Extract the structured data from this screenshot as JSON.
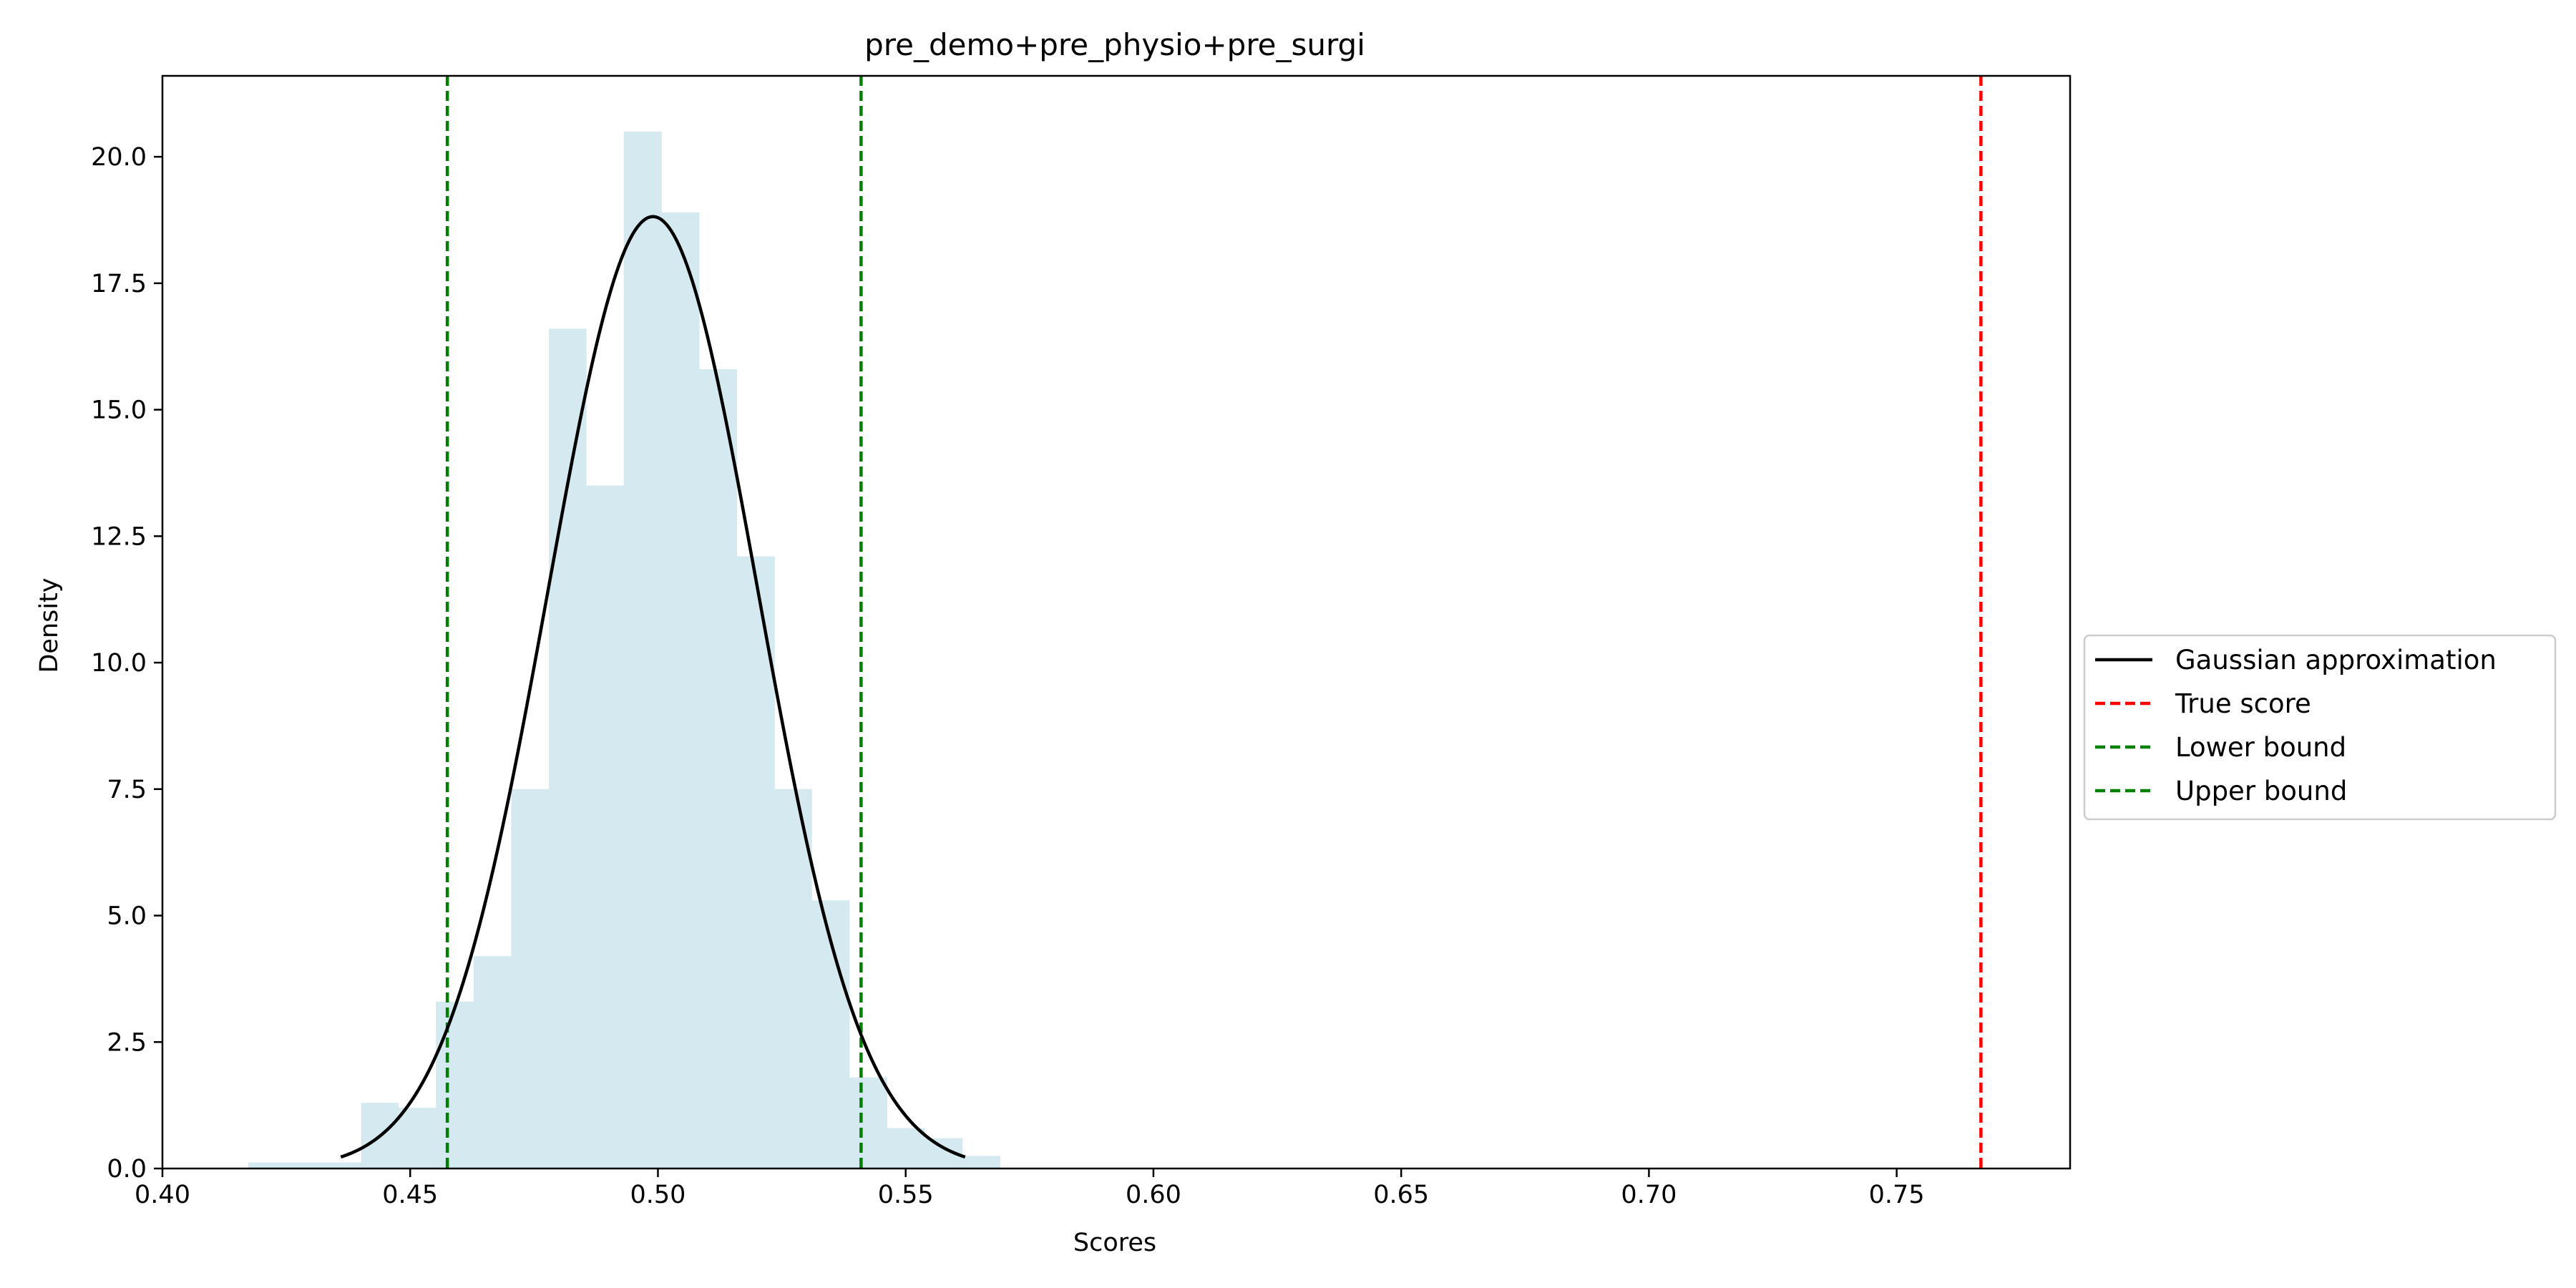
{
  "chart_data": {
    "type": "histogram",
    "title": "pre_demo+pre_physio+pre_surgi",
    "xlabel": "Scores",
    "ylabel": "Density",
    "xlim": [
      0.4,
      0.785
    ],
    "ylim": [
      0,
      21.6
    ],
    "x_ticks": [
      "0.40",
      "0.45",
      "0.50",
      "0.55",
      "0.60",
      "0.65",
      "0.70",
      "0.75"
    ],
    "y_ticks": [
      "0.0",
      "2.5",
      "5.0",
      "7.5",
      "10.0",
      "12.5",
      "15.0",
      "17.5",
      "20.0"
    ],
    "histogram": {
      "color": "#d4eaf0",
      "bins": [
        {
          "x0": 0.4173,
          "x1": 0.4249,
          "density": 0.12
        },
        {
          "x0": 0.4249,
          "x1": 0.4325,
          "density": 0.12
        },
        {
          "x0": 0.4325,
          "x1": 0.4401,
          "density": 0.12
        },
        {
          "x0": 0.4401,
          "x1": 0.4476,
          "density": 1.3
        },
        {
          "x0": 0.4476,
          "x1": 0.4552,
          "density": 1.2
        },
        {
          "x0": 0.4552,
          "x1": 0.4628,
          "density": 3.3
        },
        {
          "x0": 0.4628,
          "x1": 0.4704,
          "density": 4.2
        },
        {
          "x0": 0.4704,
          "x1": 0.478,
          "density": 7.5
        },
        {
          "x0": 0.478,
          "x1": 0.4855,
          "density": 16.6
        },
        {
          "x0": 0.4855,
          "x1": 0.4931,
          "density": 13.5
        },
        {
          "x0": 0.4931,
          "x1": 0.5007,
          "density": 20.5
        },
        {
          "x0": 0.5007,
          "x1": 0.5083,
          "density": 18.9
        },
        {
          "x0": 0.5083,
          "x1": 0.5159,
          "density": 15.8
        },
        {
          "x0": 0.5159,
          "x1": 0.5235,
          "density": 12.1
        },
        {
          "x0": 0.5235,
          "x1": 0.531,
          "density": 7.5
        },
        {
          "x0": 0.531,
          "x1": 0.5386,
          "density": 5.3
        },
        {
          "x0": 0.5386,
          "x1": 0.5462,
          "density": 1.8
        },
        {
          "x0": 0.5462,
          "x1": 0.5538,
          "density": 0.8
        },
        {
          "x0": 0.5538,
          "x1": 0.5614,
          "density": 0.6
        },
        {
          "x0": 0.5614,
          "x1": 0.569,
          "density": 0.25
        }
      ]
    },
    "series": [
      {
        "name": "Gaussian approximation",
        "kind": "normal_pdf",
        "mean": 0.499,
        "std": 0.0212,
        "x_range": [
          0.436,
          0.562
        ],
        "color": "#000000",
        "dash": "solid"
      },
      {
        "name": "True score",
        "kind": "vline",
        "x": 0.767,
        "color": "#ff0000",
        "dash": "dashed"
      },
      {
        "name": "Lower bound",
        "kind": "vline",
        "x": 0.4575,
        "color": "#008000",
        "dash": "dashed"
      },
      {
        "name": "Upper bound",
        "kind": "vline",
        "x": 0.541,
        "color": "#008000",
        "dash": "dashed"
      }
    ],
    "legend_position": "outside-right",
    "grid": false
  }
}
